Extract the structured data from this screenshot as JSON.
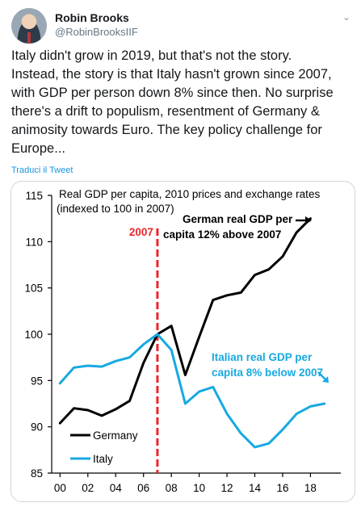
{
  "tweet": {
    "author_name": "Robin Brooks",
    "author_handle": "@RobinBrooksIIF",
    "text": "Italy didn't grow in 2019, but that's not the story.\nInstead, the story is that Italy hasn't grown since 2007,\nwith GDP per person down 8% since then. No surprise\nthere's a drift to populism, resentment of Germany &\nanimosity towards Euro. The key policy challenge for\nEurope...",
    "translate_label": "Traduci il Tweet"
  },
  "icons": {
    "menu": "chevron-down-icon",
    "avatar": "profile-photo"
  },
  "chart_data": {
    "type": "line",
    "title": "Real GDP per capita, 2010 prices and exchange rates",
    "subtitle": "(indexed to 100 in 2007)",
    "ylim": [
      85,
      115
    ],
    "yticks": [
      85,
      90,
      95,
      100,
      105,
      110,
      115
    ],
    "xlim": [
      1999.4,
      2019.6
    ],
    "xticks": [
      2000,
      2002,
      2004,
      2006,
      2008,
      2010,
      2012,
      2014,
      2016,
      2018
    ],
    "xtick_labels": [
      "00",
      "02",
      "04",
      "06",
      "08",
      "10",
      "12",
      "14",
      "16",
      "18"
    ],
    "x": [
      2000,
      2001,
      2002,
      2003,
      2004,
      2005,
      2006,
      2007,
      2008,
      2009,
      2010,
      2011,
      2012,
      2013,
      2014,
      2015,
      2016,
      2017,
      2018,
      2019
    ],
    "series": [
      {
        "name": "Germany",
        "color": "#000000",
        "x": [
          2000,
          2001,
          2002,
          2003,
          2004,
          2005,
          2006,
          2007,
          2008,
          2009,
          2010,
          2011,
          2012,
          2013,
          2014,
          2015,
          2016,
          2017,
          2018
        ],
        "values": [
          90.4,
          92.0,
          91.8,
          91.2,
          91.9,
          92.8,
          96.9,
          100.0,
          100.9,
          95.6,
          99.7,
          103.7,
          104.2,
          104.5,
          106.4,
          107.0,
          108.4,
          111.0,
          112.5
        ]
      },
      {
        "name": "Italy",
        "color": "#17a9e1",
        "x": [
          2000,
          2001,
          2002,
          2003,
          2004,
          2005,
          2006,
          2007,
          2008,
          2009,
          2010,
          2011,
          2012,
          2013,
          2014,
          2015,
          2016,
          2017,
          2018,
          2019
        ],
        "values": [
          94.7,
          96.4,
          96.6,
          96.5,
          97.1,
          97.5,
          98.9,
          100.0,
          98.3,
          92.5,
          93.8,
          94.3,
          91.4,
          89.3,
          87.8,
          88.2,
          89.7,
          91.4,
          92.2,
          92.5
        ]
      }
    ],
    "reference_line": {
      "x": 2007,
      "label": "2007",
      "color": "#e8262b"
    },
    "annotations": [
      {
        "text_lines": [
          "German real GDP per",
          "capita 12% above 2007"
        ],
        "color": "#000000"
      },
      {
        "text_lines": [
          "Italian real GDP per",
          "capita 8% below 2007"
        ],
        "color": "#17a9e1"
      }
    ],
    "legend": [
      "Germany",
      "Italy"
    ],
    "legend_position": "bottom-left",
    "grid": false
  }
}
